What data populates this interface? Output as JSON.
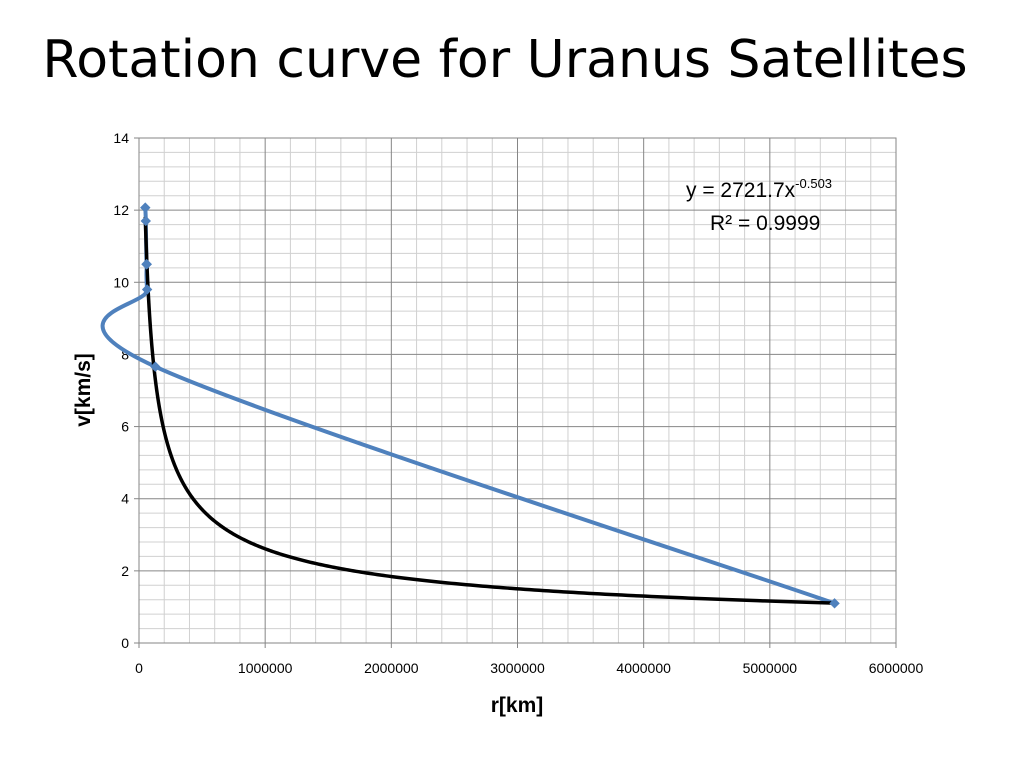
{
  "slide": {
    "title": "Rotation curve for Uranus Satellites"
  },
  "chart_data": {
    "type": "scatter",
    "title": "",
    "xlabel": "r[km]",
    "ylabel": "v[km/s]",
    "xlim": [
      0,
      6000000
    ],
    "ylim": [
      0,
      14
    ],
    "x_ticks": [
      "0",
      "1000000",
      "2000000",
      "3000000",
      "4000000",
      "5000000",
      "6000000"
    ],
    "y_ticks": [
      "0",
      "2",
      "4",
      "6",
      "8",
      "10",
      "12",
      "14"
    ],
    "grid": true,
    "series": [
      {
        "x": [
          49770,
          53790,
          59170,
          61780,
          64350,
          129900,
          5513000
        ],
        "y": [
          12.07,
          11.7,
          10.5,
          10.5,
          9.8,
          7.66,
          1.1
        ],
        "color": "#4F81BD",
        "style": "smoothed line with diamond markers"
      }
    ],
    "trendline": {
      "type": "power",
      "coefficient": 2721.7,
      "exponent": -0.503,
      "color": "#000000",
      "equation_text": "y = 2721.7x",
      "equation_exponent": "-0.503",
      "r_squared_text": "R² = 0.9999"
    }
  }
}
